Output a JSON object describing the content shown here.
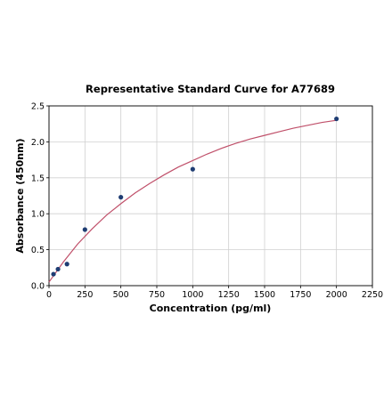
{
  "chart_data": {
    "type": "scatter",
    "title": "Representative Standard Curve for A77689",
    "xlabel": "Concentration (pg/ml)",
    "ylabel": "Absorbance (450nm)",
    "xlim": [
      0,
      2250
    ],
    "ylim": [
      0,
      2.5
    ],
    "xticks": [
      "0",
      "250",
      "500",
      "750",
      "1000",
      "1250",
      "1500",
      "1750",
      "2000",
      "2250"
    ],
    "yticks": [
      "0.0",
      "0.5",
      "1.0",
      "1.5",
      "2.0",
      "2.5"
    ],
    "grid": true,
    "legend": "none",
    "series": [
      {
        "type": "scatter",
        "points": [
          {
            "x": 31.25,
            "y": 0.16
          },
          {
            "x": 62.5,
            "y": 0.23
          },
          {
            "x": 125,
            "y": 0.3
          },
          {
            "x": 250,
            "y": 0.78
          },
          {
            "x": 500,
            "y": 1.23
          },
          {
            "x": 1000,
            "y": 1.62
          },
          {
            "x": 2000,
            "y": 2.32
          }
        ],
        "color": "#1f3d73"
      },
      {
        "type": "line",
        "fit_curve": {
          "x": [
            0,
            100,
            200,
            300,
            400,
            500,
            600,
            700,
            800,
            900,
            1000,
            1100,
            1200,
            1300,
            1400,
            1500,
            1600,
            1700,
            1800,
            1900,
            2000
          ],
          "y": [
            0.05,
            0.33,
            0.58,
            0.79,
            0.98,
            1.14,
            1.29,
            1.42,
            1.54,
            1.65,
            1.74,
            1.83,
            1.91,
            1.98,
            2.04,
            2.09,
            2.14,
            2.19,
            2.23,
            2.27,
            2.3
          ]
        },
        "color": "#c0506a"
      }
    ]
  }
}
